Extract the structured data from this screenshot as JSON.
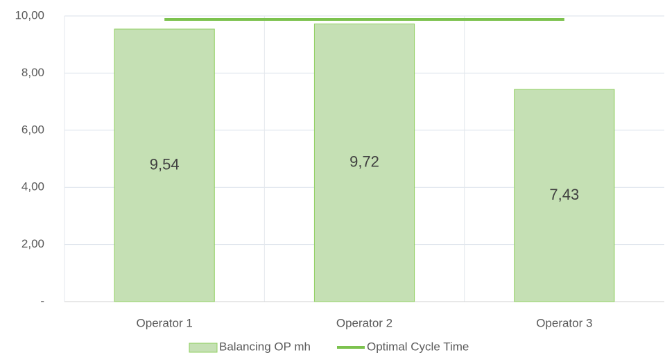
{
  "chart_data": {
    "type": "bar",
    "categories": [
      "Operator 1",
      "Operator 2",
      "Operator 3"
    ],
    "series": [
      {
        "name": "Balancing OP mh",
        "type": "bar",
        "color": "#c5e0b4",
        "border": "#8fcf5f",
        "values": [
          9.54,
          9.72,
          7.43
        ],
        "value_labels": [
          "9,54",
          "9,72",
          "7,43"
        ]
      },
      {
        "name": "Optimal Cycle Time",
        "type": "line",
        "color": "#7cc24e",
        "values": [
          9.88,
          9.88,
          9.88
        ]
      }
    ],
    "ylim": [
      0,
      10
    ],
    "yticks": [
      {
        "value": 0,
        "label": "-"
      },
      {
        "value": 2,
        "label": "2,00"
      },
      {
        "value": 4,
        "label": "4,00"
      },
      {
        "value": 6,
        "label": "6,00"
      },
      {
        "value": 8,
        "label": "8,00"
      },
      {
        "value": 10,
        "label": "10,00"
      }
    ],
    "grid": true,
    "legend": "bottom"
  }
}
